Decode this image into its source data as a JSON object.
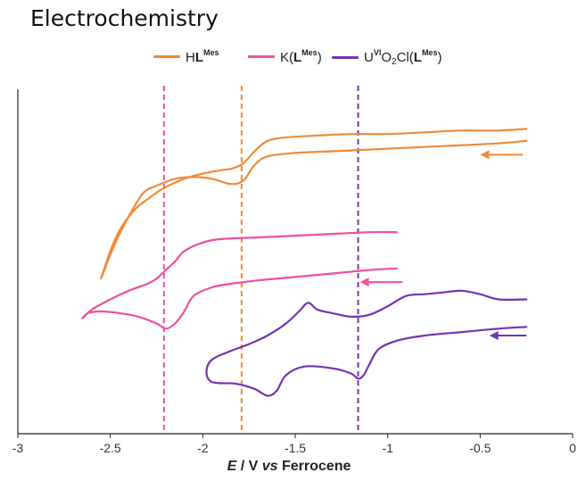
{
  "title": "Electrochemistry",
  "colors": {
    "orange": "#ef8b3a",
    "pink": "#ee4f9e",
    "purple": "#7733b0"
  },
  "legend": [
    {
      "name": "HL^Mes",
      "pre": "H",
      "bold": "L",
      "sup": "Mes",
      "color": "#ef8b3a"
    },
    {
      "name": "K(L^Mes)",
      "pre": "K(",
      "bold": "L",
      "sup": "Mes",
      "post": ")",
      "color": "#ee4f9e"
    },
    {
      "name": "U^VI O2Cl(L^Mes)",
      "pre": "U",
      "sup1": "VI",
      "mid": "O",
      "sub": "2",
      "mid2": "Cl(",
      "bold": "L",
      "sup": "Mes",
      "post": ")",
      "color": "#7733b0"
    }
  ],
  "chart_data": {
    "type": "line",
    "title": "Electrochemistry",
    "xlabel": "E / V vs Ferrocene",
    "ylabel": "",
    "xlim": [
      -3,
      0
    ],
    "xticks": [
      -3,
      -2.5,
      -2,
      -1.5,
      -1,
      -0.5,
      0
    ],
    "xtick_labels": [
      "-3",
      "-2.5",
      "-2",
      "-1.5",
      "-1",
      "-0.5",
      "0"
    ],
    "grid": false,
    "legend_position": "top",
    "note": "Vertical axis is unlabeled current; y values are relative units (0 = bottom axis, 100 = top of axis).",
    "reference_lines": [
      {
        "series": "K(L^Mes)",
        "x": -2.21,
        "color": "#ee4f9e",
        "style": "dashed"
      },
      {
        "series": "HL^Mes",
        "x": -1.79,
        "color": "#ef8b3a",
        "style": "dashed"
      },
      {
        "series": "U^VI O2Cl(L^Mes)",
        "x": -1.16,
        "color": "#7733b0",
        "style": "dashed"
      }
    ],
    "series": [
      {
        "name": "HL^Mes",
        "color": "#ef8b3a",
        "scan_arrow": {
          "x_from": -0.27,
          "x_to": -0.5,
          "y": 81
        },
        "x": [
          -0.25,
          -0.35,
          -0.5,
          -0.7,
          -0.9,
          -1.1,
          -1.3,
          -1.5,
          -1.65,
          -1.72,
          -1.78,
          -1.85,
          -1.95,
          -2.05,
          -2.15,
          -2.25,
          -2.32,
          -2.38,
          -2.45,
          -2.5,
          -2.55,
          -2.5,
          -2.45,
          -2.4,
          -2.35,
          -2.3,
          -2.22,
          -2.1,
          -2.0,
          -1.9,
          -1.84,
          -1.78,
          -1.72,
          -1.65,
          -1.55,
          -1.4,
          -1.2,
          -1.0,
          -0.8,
          -0.6,
          -0.4,
          -0.25
        ],
        "y": [
          85,
          84.5,
          84,
          83.5,
          83,
          82.5,
          82,
          81.5,
          80.5,
          78,
          73.5,
          72.5,
          74,
          74.5,
          74,
          72,
          70,
          65,
          58,
          52,
          45,
          53,
          59,
          63,
          66,
          68,
          71,
          74,
          75.5,
          76.5,
          77,
          78.5,
          82,
          85,
          86,
          86.5,
          87,
          87,
          87.5,
          88,
          88,
          88.5
        ]
      },
      {
        "name": "K(L^Mes)",
        "color": "#ee4f9e",
        "scan_arrow": {
          "x_from": -0.92,
          "x_to": -1.15,
          "y": 44
        },
        "x": [
          -0.95,
          -1.1,
          -1.3,
          -1.5,
          -1.7,
          -1.85,
          -1.95,
          -2.05,
          -2.1,
          -2.15,
          -2.2,
          -2.25,
          -2.35,
          -2.45,
          -2.55,
          -2.62,
          -2.65,
          -2.6,
          -2.5,
          -2.4,
          -2.3,
          -2.25,
          -2.2,
          -2.15,
          -2.1,
          -2.0,
          -1.9,
          -1.7,
          -1.5,
          -1.3,
          -1.1,
          -0.95
        ],
        "y": [
          48,
          47.5,
          46.5,
          45.5,
          44.5,
          43.5,
          42.5,
          40,
          35.5,
          32,
          30.5,
          32,
          34,
          35,
          35.5,
          35,
          33.5,
          36,
          39,
          41.5,
          43.5,
          45,
          47.5,
          50,
          53,
          55.5,
          56.5,
          57,
          57.5,
          58,
          58.5,
          58.5
        ]
      },
      {
        "name": "U^VI O2Cl(L^Mes)",
        "color": "#7733b0",
        "scan_arrow": {
          "x_from": -0.25,
          "x_to": -0.45,
          "y": 28.5
        },
        "x": [
          -0.25,
          -0.4,
          -0.6,
          -0.8,
          -0.95,
          -1.05,
          -1.1,
          -1.13,
          -1.16,
          -1.2,
          -1.3,
          -1.45,
          -1.55,
          -1.6,
          -1.65,
          -1.72,
          -1.82,
          -1.95,
          -1.98,
          -1.95,
          -1.85,
          -1.75,
          -1.65,
          -1.55,
          -1.48,
          -1.43,
          -1.38,
          -1.3,
          -1.2,
          -1.1,
          -1.0,
          -0.9,
          -0.8,
          -0.7,
          -0.6,
          -0.5,
          -0.4,
          -0.25
        ],
        "y": [
          31,
          30.5,
          29.5,
          28.5,
          27,
          24.5,
          20,
          17,
          16,
          17.5,
          19,
          19.5,
          17,
          12.5,
          11,
          13,
          14.5,
          15,
          18,
          21.5,
          24,
          26,
          28.5,
          32,
          35.5,
          38,
          36,
          35,
          34,
          34.5,
          37,
          40,
          40.5,
          41,
          41.5,
          40.5,
          39,
          39
        ]
      }
    ]
  }
}
